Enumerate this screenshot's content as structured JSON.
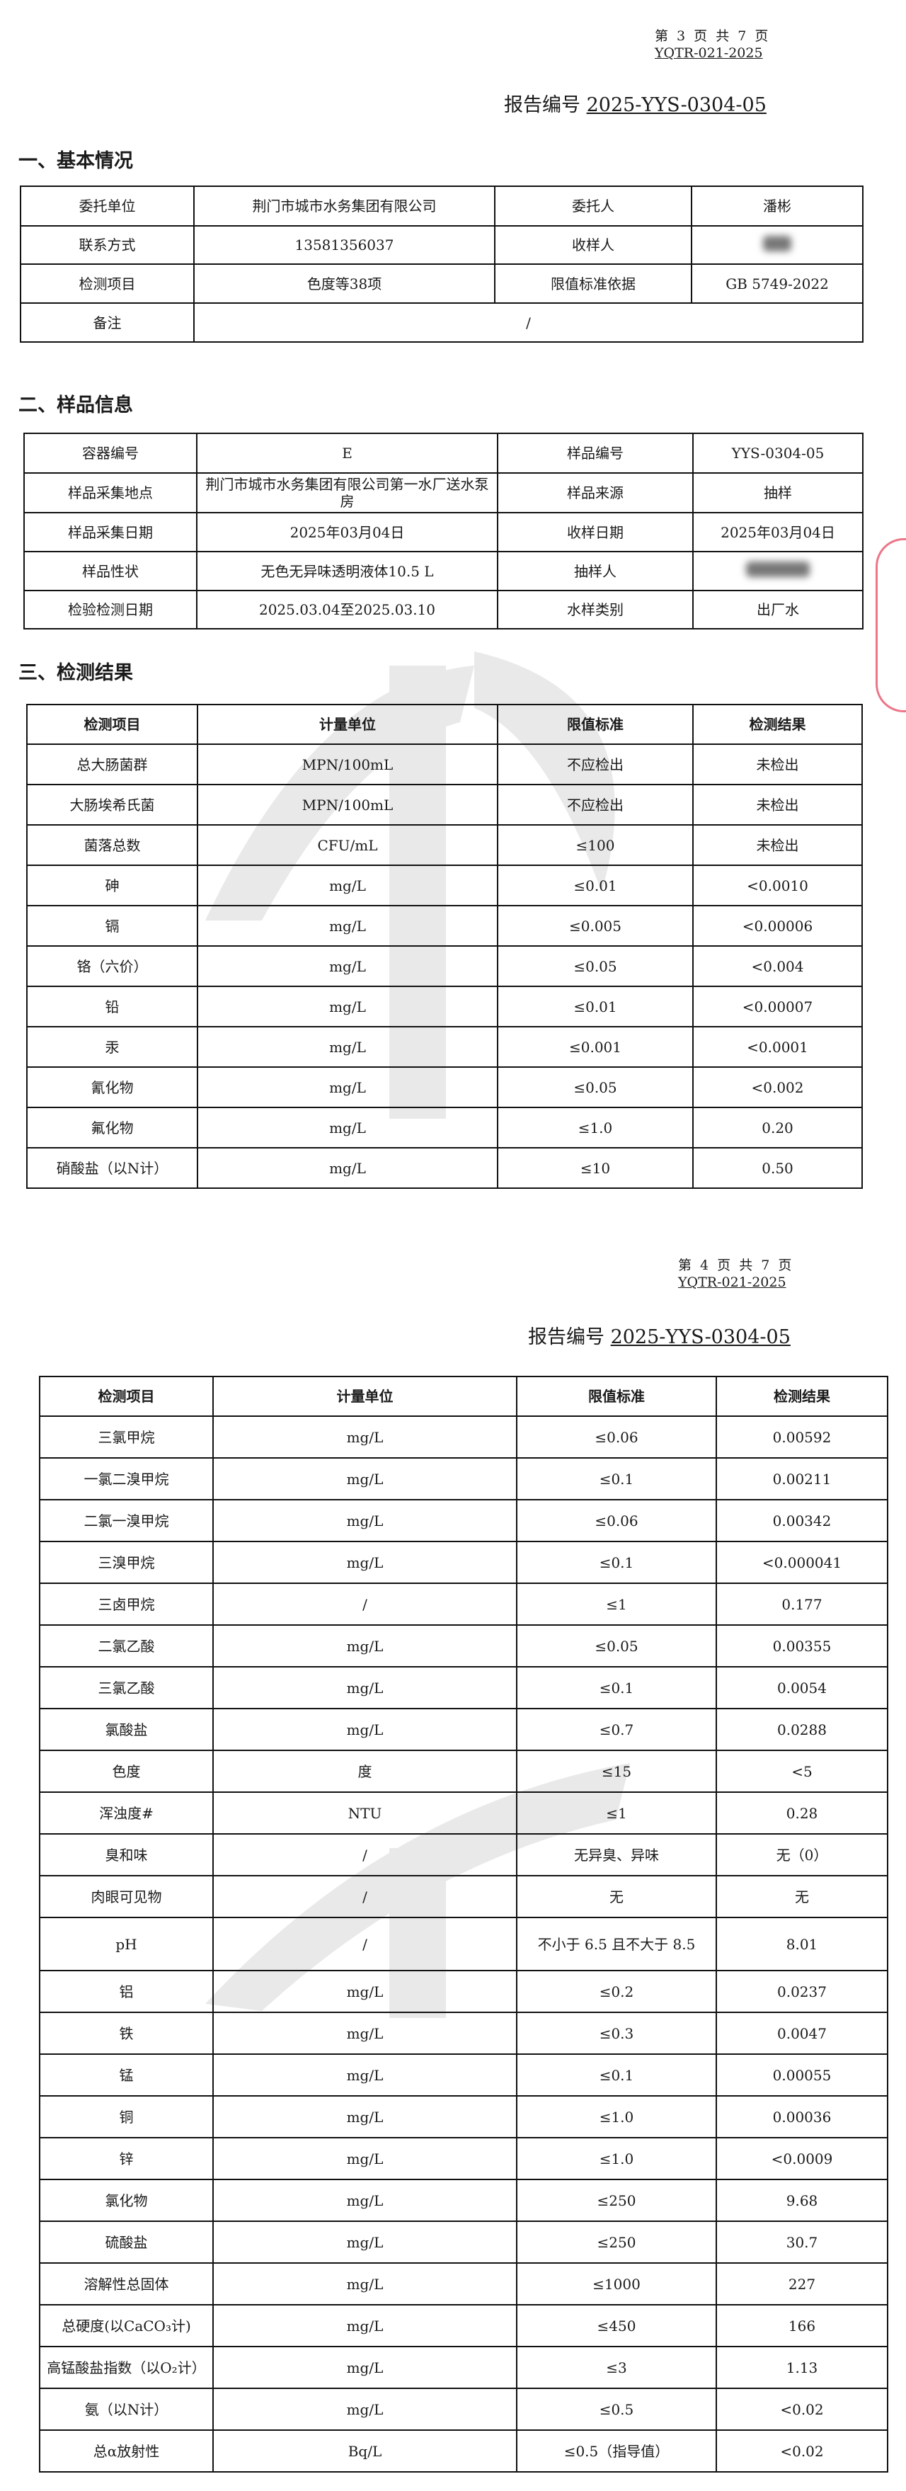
{
  "page1": {
    "page_info": "第 3 页 共 7 页",
    "form_code": "YQTR-021-2025",
    "report_label": "报告编号",
    "report_number": "2025-YYS-0304-05",
    "section1_title": "一、基本情况",
    "basic": {
      "client_unit_label": "委托单位",
      "client_unit": "荆门市城市水务集团有限公司",
      "client_person_label": "委托人",
      "client_person": "潘彬",
      "contact_label": "联系方式",
      "contact": "13581356037",
      "receiver_label": "收样人",
      "items_label": "检测项目",
      "items": "色度等38项",
      "standard_label": "限值标准依据",
      "standard": "GB 5749-2022",
      "remark_label": "备注",
      "remark": "/"
    },
    "section2_title": "二、样品信息",
    "sample": {
      "container_label": "容器编号",
      "container": "E",
      "sample_no_label": "样品编号",
      "sample_no": "YYS-0304-05",
      "location_label": "样品采集地点",
      "location": "荆门市城市水务集团有限公司第一水厂送水泵房",
      "source_label": "样品来源",
      "source": "抽样",
      "collect_date_label": "样品采集日期",
      "collect_date": "2025年03月04日",
      "receive_date_label": "收样日期",
      "receive_date": "2025年03月04日",
      "property_label": "样品性状",
      "property": "无色无异味透明液体10.5 L",
      "sampler_label": "抽样人",
      "test_date_label": "检验检测日期",
      "test_date": "2025.03.04至2025.03.10",
      "water_type_label": "水样类别",
      "water_type": "出厂水"
    },
    "section3_title": "三、检测结果",
    "results_header": [
      "检测项目",
      "计量单位",
      "限值标准",
      "检测结果"
    ],
    "results": [
      [
        "总大肠菌群",
        "MPN/100mL",
        "不应检出",
        "未检出"
      ],
      [
        "大肠埃希氏菌",
        "MPN/100mL",
        "不应检出",
        "未检出"
      ],
      [
        "菌落总数",
        "CFU/mL",
        "≤100",
        "未检出"
      ],
      [
        "砷",
        "mg/L",
        "≤0.01",
        "<0.0010"
      ],
      [
        "镉",
        "mg/L",
        "≤0.005",
        "<0.00006"
      ],
      [
        "铬（六价）",
        "mg/L",
        "≤0.05",
        "<0.004"
      ],
      [
        "铅",
        "mg/L",
        "≤0.01",
        "<0.00007"
      ],
      [
        "汞",
        "mg/L",
        "≤0.001",
        "<0.0001"
      ],
      [
        "氰化物",
        "mg/L",
        "≤0.05",
        "<0.002"
      ],
      [
        "氟化物",
        "mg/L",
        "≤1.0",
        "0.20"
      ],
      [
        "硝酸盐（以N计）",
        "mg/L",
        "≤10",
        "0.50"
      ]
    ]
  },
  "page2": {
    "page_info": "第 4 页 共 7 页",
    "form_code": "YQTR-021-2025",
    "report_label": "报告编号",
    "report_number": "2025-YYS-0304-05",
    "results_header": [
      "检测项目",
      "计量单位",
      "限值标准",
      "检测结果"
    ],
    "results": [
      [
        "三氯甲烷",
        "mg/L",
        "≤0.06",
        "0.00592"
      ],
      [
        "一氯二溴甲烷",
        "mg/L",
        "≤0.1",
        "0.00211"
      ],
      [
        "二氯一溴甲烷",
        "mg/L",
        "≤0.06",
        "0.00342"
      ],
      [
        "三溴甲烷",
        "mg/L",
        "≤0.1",
        "<0.000041"
      ],
      [
        "三卤甲烷",
        "/",
        "≤1",
        "0.177"
      ],
      [
        "二氯乙酸",
        "mg/L",
        "≤0.05",
        "0.00355"
      ],
      [
        "三氯乙酸",
        "mg/L",
        "≤0.1",
        "0.0054"
      ],
      [
        "氯酸盐",
        "mg/L",
        "≤0.7",
        "0.0288"
      ],
      [
        "色度",
        "度",
        "≤15",
        "<5"
      ],
      [
        "浑浊度#",
        "NTU",
        "≤1",
        "0.28"
      ],
      [
        "臭和味",
        "/",
        "无异臭、异味",
        "无（0）"
      ],
      [
        "肉眼可见物",
        "/",
        "无",
        "无"
      ],
      [
        "pH",
        "/",
        "不小于 6.5 且不大于 8.5",
        "8.01"
      ],
      [
        "铝",
        "mg/L",
        "≤0.2",
        "0.0237"
      ],
      [
        "铁",
        "mg/L",
        "≤0.3",
        "0.0047"
      ],
      [
        "锰",
        "mg/L",
        "≤0.1",
        "0.00055"
      ],
      [
        "铜",
        "mg/L",
        "≤1.0",
        "0.00036"
      ],
      [
        "锌",
        "mg/L",
        "≤1.0",
        "<0.0009"
      ],
      [
        "氯化物",
        "mg/L",
        "≤250",
        "9.68"
      ],
      [
        "硫酸盐",
        "mg/L",
        "≤250",
        "30.7"
      ],
      [
        "溶解性总固体",
        "mg/L",
        "≤1000",
        "227"
      ],
      [
        "总硬度(以CaCO₃计)",
        "mg/L",
        "≤450",
        "166"
      ],
      [
        "高锰酸盐指数（以O₂计）",
        "mg/L",
        "≤3",
        "1.13"
      ],
      [
        "氨（以N计）",
        "mg/L",
        "≤0.5",
        "<0.02"
      ],
      [
        "总α放射性",
        "Bq/L",
        "≤0.5（指导值）",
        "<0.02"
      ]
    ]
  }
}
